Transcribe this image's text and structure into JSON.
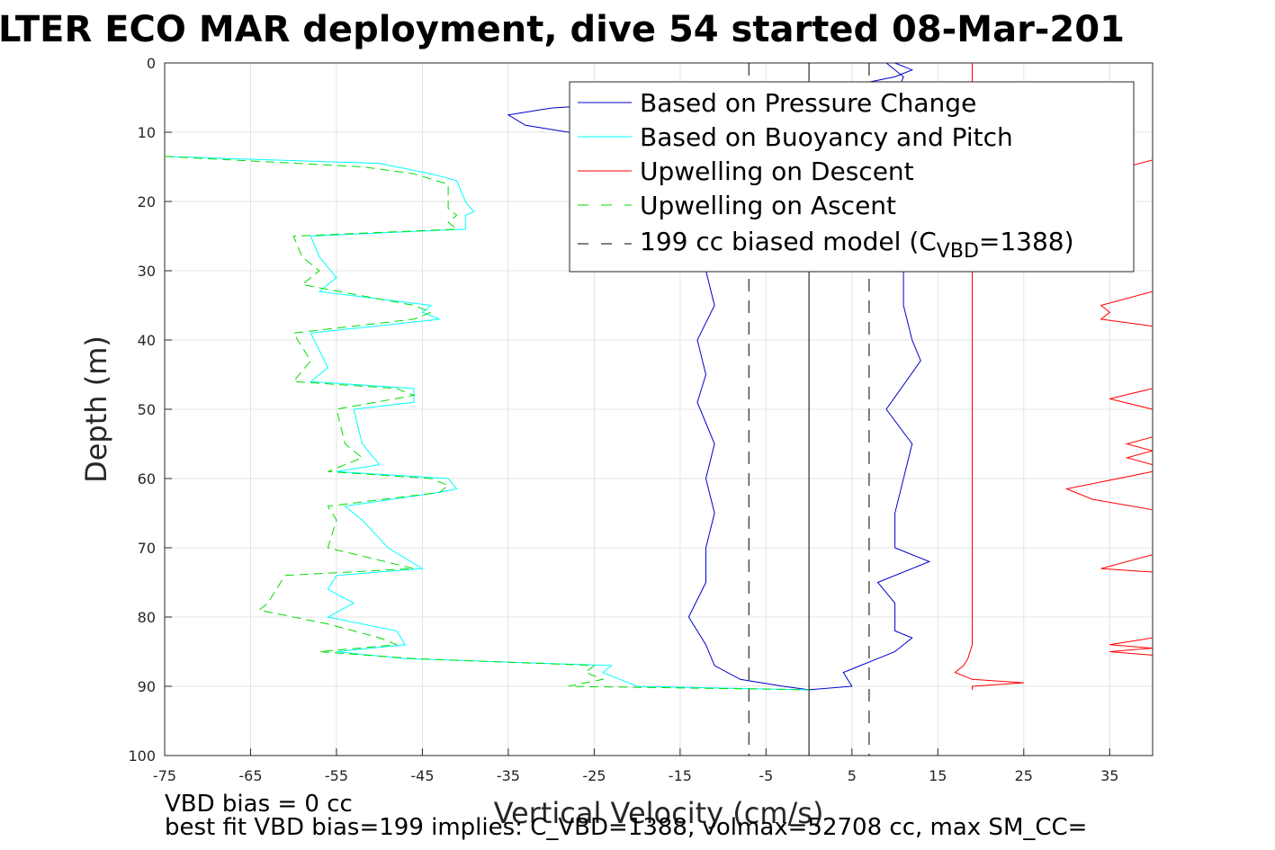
{
  "chart_data": {
    "type": "line",
    "title": "LTER ECO MAR deployment, dive 54 started 08-Mar-201",
    "xlabel": "Vertical Velocity (cm/s)",
    "ylabel": "Depth (m)",
    "xlim": [
      -75,
      40
    ],
    "ylim": [
      0,
      100
    ],
    "y_reversed": true,
    "grid": true,
    "legend_position": "top-right",
    "xticks": [
      "-75",
      "-65",
      "-55",
      "-45",
      "-35",
      "-25",
      "-15",
      "-5",
      "5",
      "15",
      "25",
      "35"
    ],
    "yticks": [
      "0",
      "10",
      "20",
      "30",
      "40",
      "50",
      "60",
      "70",
      "80",
      "90",
      "100"
    ],
    "legend": {
      "entries": [
        {
          "label": "Based on Pressure Change",
          "color": "#0000cc",
          "dash": "solid"
        },
        {
          "label": "Based on Buoyancy and Pitch",
          "color": "#00ffff",
          "dash": "solid"
        },
        {
          "label": "Upwelling on Descent",
          "color": "#ff0000",
          "dash": "solid"
        },
        {
          "label": "Upwelling on Ascent",
          "color": "#00dd00",
          "dash": "dashed"
        }
      ],
      "model_prefix": "199 cc biased model (C",
      "model_sub": "VBD",
      "model_suffix": "=1388)"
    },
    "series": [
      {
        "name": "Based on Pressure Change",
        "key": "pressure_descent",
        "color": "#0000cc",
        "dash": "solid",
        "points": [
          [
            10,
            0
          ],
          [
            12,
            1
          ],
          [
            10,
            2
          ],
          [
            6,
            3
          ],
          [
            0,
            4
          ],
          [
            -10,
            5
          ],
          [
            -30,
            6.5
          ],
          [
            -35,
            7.5
          ],
          [
            -33,
            9
          ],
          [
            -28,
            10
          ],
          [
            -15,
            11
          ],
          [
            -12,
            13
          ],
          [
            -13,
            20
          ],
          [
            -12,
            30
          ],
          [
            -11,
            35
          ],
          [
            -13,
            40
          ],
          [
            -12,
            45
          ],
          [
            -13,
            49
          ],
          [
            -11,
            55
          ],
          [
            -12,
            60
          ],
          [
            -11,
            65
          ],
          [
            -12,
            70
          ],
          [
            -12,
            75
          ],
          [
            -14,
            80
          ],
          [
            -12,
            84
          ],
          [
            -11,
            87
          ],
          [
            -8,
            89
          ],
          [
            -3,
            90
          ],
          [
            0,
            90.5
          ]
        ]
      },
      {
        "name": "Based on Pressure Change",
        "key": "pressure_ascent",
        "color": "#0000cc",
        "dash": "solid",
        "points": [
          [
            0,
            90.5
          ],
          [
            5,
            90
          ],
          [
            4,
            88
          ],
          [
            6,
            87
          ],
          [
            8,
            86
          ],
          [
            10,
            85
          ],
          [
            12,
            83
          ],
          [
            10,
            82
          ],
          [
            10,
            78
          ],
          [
            8,
            75
          ],
          [
            14,
            72
          ],
          [
            10,
            70
          ],
          [
            10,
            65
          ],
          [
            12,
            55
          ],
          [
            9,
            50
          ],
          [
            13,
            43
          ],
          [
            12,
            40
          ],
          [
            11,
            35
          ],
          [
            11,
            30
          ],
          [
            10,
            25
          ],
          [
            9,
            20
          ],
          [
            10,
            15
          ],
          [
            11,
            10
          ],
          [
            10,
            5
          ],
          [
            11,
            2
          ],
          [
            9,
            0
          ]
        ]
      },
      {
        "name": "Based on Buoyancy and Pitch",
        "key": "buoyancy",
        "color": "#00ffff",
        "dash": "solid",
        "points": [
          [
            -75,
            13.5
          ],
          [
            -50,
            14.5
          ],
          [
            -44,
            16
          ],
          [
            -41,
            17
          ],
          [
            -40,
            20
          ],
          [
            -39,
            21.5
          ],
          [
            -40,
            22
          ],
          [
            -40,
            24
          ],
          [
            -58,
            25
          ],
          [
            -57,
            28
          ],
          [
            -55,
            31
          ],
          [
            -57,
            33
          ],
          [
            -44,
            35
          ],
          [
            -45,
            36
          ],
          [
            -43,
            37
          ],
          [
            -58,
            39
          ],
          [
            -56,
            44
          ],
          [
            -58,
            46
          ],
          [
            -46,
            47
          ],
          [
            -46,
            49
          ],
          [
            -53,
            50
          ],
          [
            -52,
            55
          ],
          [
            -50,
            58
          ],
          [
            -55,
            59
          ],
          [
            -42,
            60
          ],
          [
            -41,
            61.5
          ],
          [
            -43,
            62
          ],
          [
            -54,
            64
          ],
          [
            -52,
            66
          ],
          [
            -49,
            70
          ],
          [
            -45,
            73
          ],
          [
            -55,
            74
          ],
          [
            -56,
            76
          ],
          [
            -53,
            78
          ],
          [
            -56,
            80
          ],
          [
            -48,
            82
          ],
          [
            -47,
            84
          ],
          [
            -55,
            85
          ],
          [
            -47,
            86
          ],
          [
            -23,
            87
          ],
          [
            -24,
            88
          ],
          [
            -22,
            89
          ],
          [
            -20,
            90
          ],
          [
            0,
            90.5
          ]
        ]
      },
      {
        "name": "Upwelling on Descent",
        "key": "upwell_descent",
        "color": "#ff0000",
        "dash": "solid",
        "points": [
          [
            19,
            0
          ],
          [
            19,
            10
          ],
          [
            19,
            30
          ],
          [
            19,
            50
          ],
          [
            19,
            70
          ],
          [
            19,
            84
          ],
          [
            18.5,
            86
          ],
          [
            18,
            87
          ],
          [
            17,
            88
          ],
          [
            19,
            89
          ],
          [
            25,
            89.5
          ],
          [
            19,
            90
          ],
          [
            19,
            90.5
          ]
        ]
      },
      {
        "name": "Upwelling on Descent",
        "key": "upwell_ascent_red",
        "color": "#ff0000",
        "dash": "solid",
        "points": [
          [
            40,
            14
          ],
          [
            37,
            15
          ]
        ]
      },
      {
        "name": "Upwelling on Descent",
        "key": "upwell_red_33",
        "color": "#ff0000",
        "dash": "solid",
        "points": [
          [
            40,
            33
          ],
          [
            34,
            35
          ],
          [
            35,
            36
          ],
          [
            34,
            37
          ],
          [
            40,
            38
          ]
        ]
      },
      {
        "name": "Upwelling on Descent",
        "key": "upwell_red_47",
        "color": "#ff0000",
        "dash": "solid",
        "points": [
          [
            40,
            47
          ],
          [
            35,
            48.5
          ],
          [
            40,
            50
          ]
        ]
      },
      {
        "name": "Upwelling on Descent",
        "key": "upwell_red_54",
        "color": "#ff0000",
        "dash": "solid",
        "points": [
          [
            40,
            54
          ],
          [
            37,
            55
          ],
          [
            40,
            56
          ],
          [
            37,
            57
          ],
          [
            40,
            58
          ]
        ]
      },
      {
        "name": "Upwelling on Descent",
        "key": "upwell_red_59",
        "color": "#ff0000",
        "dash": "solid",
        "points": [
          [
            40,
            59
          ],
          [
            30,
            61.5
          ],
          [
            33,
            63
          ],
          [
            40,
            64.5
          ]
        ]
      },
      {
        "name": "Upwelling on Descent",
        "key": "upwell_red_71",
        "color": "#ff0000",
        "dash": "solid",
        "points": [
          [
            40,
            71
          ],
          [
            34,
            73
          ],
          [
            40,
            73.5
          ]
        ]
      },
      {
        "name": "Upwelling on Descent",
        "key": "upwell_red_83",
        "color": "#ff0000",
        "dash": "solid",
        "points": [
          [
            40,
            83
          ],
          [
            35,
            84
          ],
          [
            40,
            84.5
          ],
          [
            35,
            85
          ],
          [
            40,
            85.5
          ]
        ]
      },
      {
        "name": "Upwelling on Ascent",
        "key": "upwell_ascent",
        "color": "#00dd00",
        "dash": "dashed",
        "points": [
          [
            -75,
            13.5
          ],
          [
            -52,
            15
          ],
          [
            -46,
            16
          ],
          [
            -42,
            17.5
          ],
          [
            -42,
            19
          ],
          [
            -42,
            21
          ],
          [
            -41,
            22
          ],
          [
            -42,
            23
          ],
          [
            -41,
            24
          ],
          [
            -60,
            25
          ],
          [
            -59,
            28
          ],
          [
            -57,
            30
          ],
          [
            -59,
            32
          ],
          [
            -46,
            35
          ],
          [
            -44,
            36
          ],
          [
            -46,
            37
          ],
          [
            -60,
            39
          ],
          [
            -58,
            43
          ],
          [
            -60,
            46
          ],
          [
            -48,
            47
          ],
          [
            -46,
            48
          ],
          [
            -55,
            50
          ],
          [
            -54,
            55
          ],
          [
            -52,
            57
          ],
          [
            -56,
            59
          ],
          [
            -44,
            60
          ],
          [
            -42,
            61
          ],
          [
            -43,
            62
          ],
          [
            -56,
            64
          ],
          [
            -55,
            66
          ],
          [
            -56,
            70
          ],
          [
            -46,
            73
          ],
          [
            -61,
            74
          ],
          [
            -62,
            76
          ],
          [
            -63,
            78
          ],
          [
            -64,
            79
          ],
          [
            -56,
            81
          ],
          [
            -50,
            83
          ],
          [
            -48,
            84
          ],
          [
            -57,
            85
          ],
          [
            -46,
            86
          ],
          [
            -25,
            87
          ],
          [
            -26,
            88
          ],
          [
            -24,
            89
          ],
          [
            -28,
            90
          ],
          [
            0,
            90.5
          ]
        ]
      }
    ],
    "reference_lines": [
      {
        "x": 0,
        "style": "solid",
        "color": "#000000"
      },
      {
        "x": -7,
        "style": "dashed",
        "color": "#000000"
      },
      {
        "x": 7,
        "style": "dashed",
        "color": "#000000"
      }
    ]
  },
  "footer": {
    "line1": "VBD bias = 0 cc",
    "line2": "best fit VBD bias=199 implies: C_VBD=1388, volmax=52708 cc, max SM_CC="
  }
}
